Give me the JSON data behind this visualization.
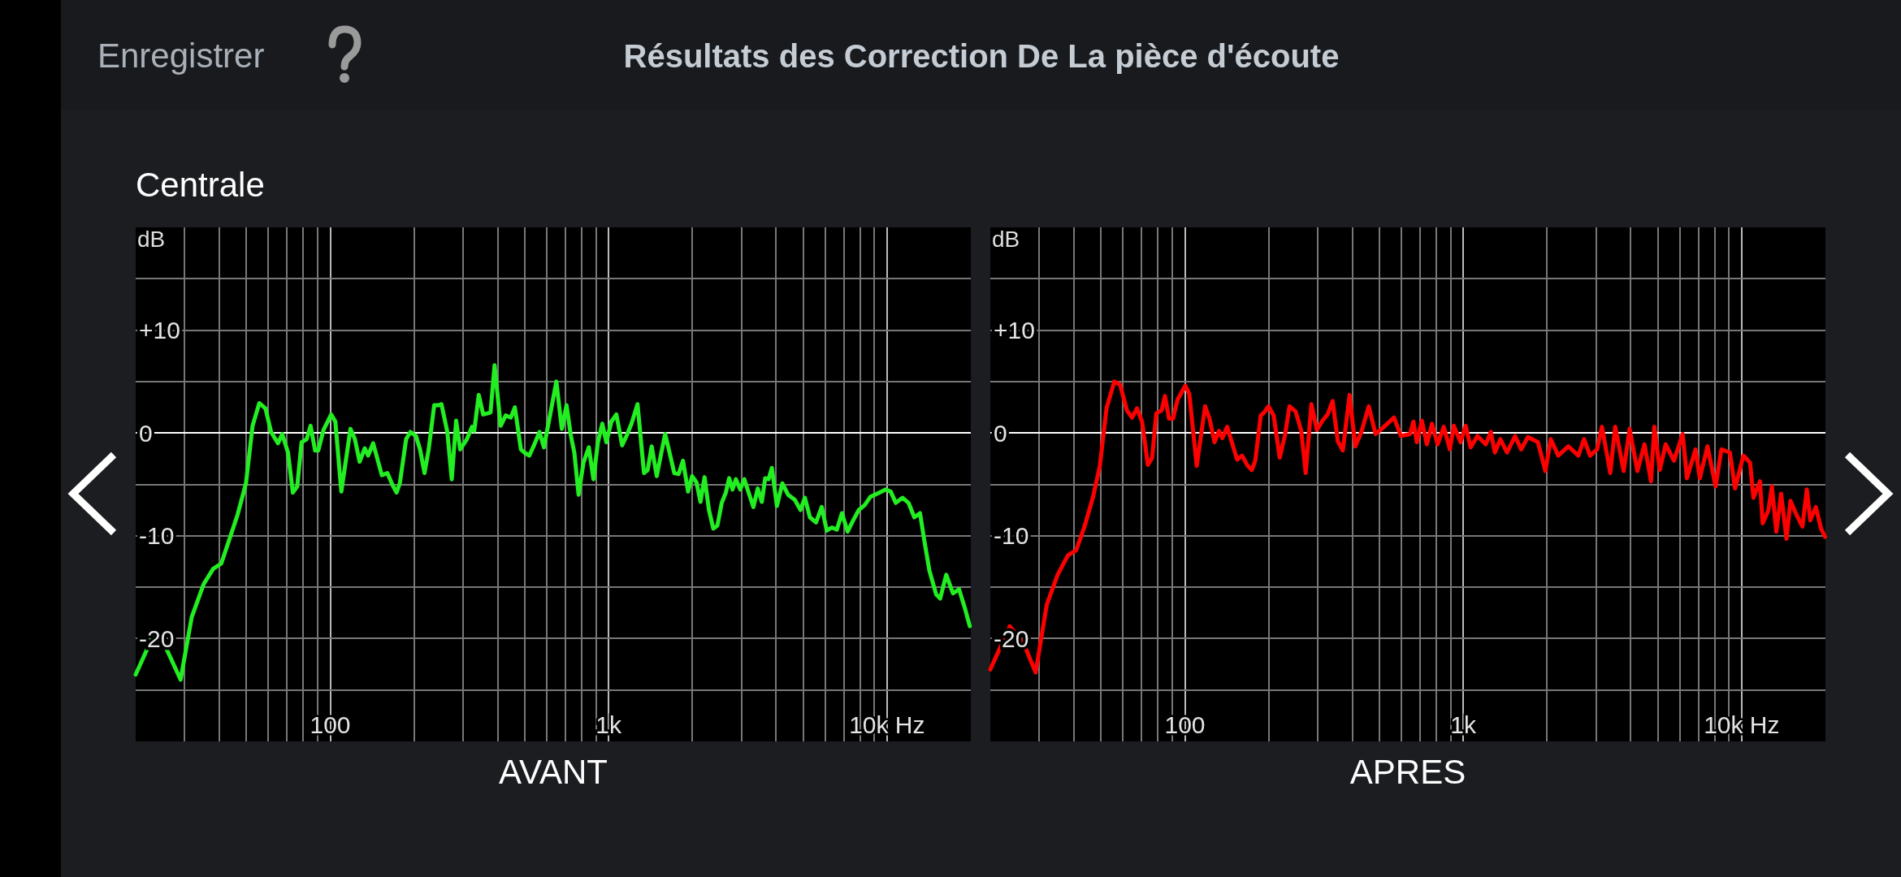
{
  "chart_data": [
    {
      "type": "line",
      "title": "Résultats des Correction De La pièce d'écoute",
      "subtitle": "Centrale",
      "annotations": [
        "Enregistrer"
      ],
      "xlabel": "AVANT",
      "ylabel": "dB",
      "log": "x",
      "grid": true,
      "xlim": [
        20,
        20000
      ],
      "ylim": [
        -30,
        20
      ],
      "xticks": [
        {
          "value": 30,
          "label": null
        },
        {
          "value": 40,
          "label": null
        },
        {
          "value": 50,
          "label": null
        },
        {
          "value": 60,
          "label": null
        },
        {
          "value": 70,
          "label": null
        },
        {
          "value": 80,
          "label": null
        },
        {
          "value": 90,
          "label": null
        },
        100,
        {
          "value": 200,
          "label": null
        },
        {
          "value": 300,
          "label": null
        },
        {
          "value": 400,
          "label": null
        },
        {
          "value": 500,
          "label": null
        },
        {
          "value": 600,
          "label": null
        },
        {
          "value": 700,
          "label": null
        },
        {
          "value": 800,
          "label": null
        },
        {
          "value": 900,
          "label": null
        },
        {
          "value": 1000,
          "label": "1k"
        },
        {
          "value": 2000,
          "label": null
        },
        {
          "value": 3000,
          "label": null
        },
        {
          "value": 4000,
          "label": null
        },
        {
          "value": 5000,
          "label": null
        },
        {
          "value": 6000,
          "label": null
        },
        {
          "value": 7000,
          "label": null
        },
        {
          "value": 8000,
          "label": null
        },
        {
          "value": 9000,
          "label": null
        },
        {
          "value": 10000,
          "label": "10k Hz"
        }
      ],
      "yticks": [
        {
          "value": 15,
          "label": null
        },
        {
          "value": 10,
          "label": "+10"
        },
        {
          "value": 5,
          "label": null
        },
        0,
        {
          "value": -5,
          "label": null
        },
        -10,
        {
          "value": -15,
          "label": null
        },
        -20,
        {
          "value": -25,
          "label": null
        }
      ],
      "series": [
        {
          "color": "#22ee22",
          "x": [
            20,
            23.4,
            25.8,
            29,
            31.8,
            35.1,
            38,
            40.6,
            46.4,
            49.8,
            52.6,
            55.6,
            58.5,
            61.3,
            64.9,
            67.2,
            70.5,
            73.4,
            76.1,
            78.9,
            82.3,
            85,
            88.2,
            90.6,
            94.6,
            100.8,
            104.3,
            109.6,
            118.2,
            122.6,
            127.5,
            133,
            136.8,
            142.6,
            153.2,
            160.4,
            167,
            173,
            177.8,
            187.3,
            194.1,
            203.3,
            210.2,
            218.1,
            225.7,
            236.3,
            244.1,
            250.9,
            263.4,
            273.2,
            283.3,
            292.9,
            309.7,
            322.9,
            329,
            341.6,
            354.2,
            366.8,
            376.5,
            389.3,
            409.4,
            426.9,
            445.2,
            460.4,
            484,
            497.7,
            519.1,
            541.3,
            564.4,
            585.3,
            613.7,
            648.9,
            679,
            706,
            732,
            753,
            780,
            812,
            849,
            882,
            915,
            949,
            981,
            1023,
            1066,
            1118,
            1159,
            1208,
            1270,
            1340,
            1381,
            1428,
            1489,
            1539,
            1596,
            1655,
            1721,
            1784,
            1850,
            1929,
            1995,
            2068,
            2138,
            2211,
            2293,
            2377,
            2459,
            2549,
            2636,
            2710,
            2786,
            2865,
            2970,
            3072,
            3202,
            3311,
            3433,
            3550,
            3651,
            3753,
            3859,
            4023,
            4207,
            4411,
            4665,
            4889,
            5069,
            5286,
            5558,
            5827,
            6076,
            6335,
            6603,
            6887,
            7220,
            7525,
            7913,
            8321,
            8723,
            9223,
            9889,
            10311,
            10750,
            11365,
            11954,
            12532,
            13138,
            13622,
            14203,
            15018,
            15524,
            16322,
            17258,
            18148,
            19025,
            19834
          ],
          "values": [
            -23.5,
            -19.4,
            -21,
            -24,
            -17.9,
            -14.7,
            -13.2,
            -12.7,
            -8,
            -4.9,
            0.7,
            2.9,
            2.4,
            0.1,
            -1,
            -0.1,
            -1.9,
            -5.8,
            -5.2,
            -0.9,
            -0.6,
            0.7,
            -1.7,
            -1.7,
            0.3,
            1.8,
            1.1,
            -5.7,
            0.4,
            -0.6,
            -2.8,
            -1.5,
            -2.2,
            -1,
            -4.1,
            -3.9,
            -5,
            -5.8,
            -4.9,
            -0.6,
            0.1,
            -0.3,
            -1.6,
            -3.9,
            -1.6,
            2.7,
            2.7,
            2.8,
            0.1,
            -4.5,
            1.2,
            -1.6,
            -0.6,
            0.6,
            0.2,
            3.7,
            1.8,
            1.9,
            2,
            6.6,
            0.7,
            1.7,
            1.5,
            2.5,
            -1.6,
            -1.9,
            -2.2,
            -1.1,
            0.1,
            -1.4,
            1.5,
            5,
            0.4,
            2.7,
            -0.3,
            -1.9,
            -6,
            -2.9,
            -1.4,
            -4.5,
            -0.9,
            0.9,
            -0.9,
            1.1,
            1.8,
            -1.2,
            -0.3,
            0.9,
            2.8,
            -3.9,
            -3.6,
            -1.3,
            -4.2,
            -2.2,
            -0.1,
            -1.9,
            -3.9,
            -4,
            -2.7,
            -5.7,
            -4.2,
            -4.8,
            -6.7,
            -4.3,
            -7.5,
            -9.3,
            -9,
            -6.8,
            -5.8,
            -4.4,
            -5.5,
            -4.5,
            -5.5,
            -4.5,
            -6,
            -7.2,
            -5.4,
            -6.7,
            -4.4,
            -4.5,
            -3.4,
            -7.1,
            -4.9,
            -6,
            -6.5,
            -7.5,
            -6.3,
            -8.2,
            -8.7,
            -7.2,
            -9.5,
            -9.2,
            -9.4,
            -7.8,
            -9.6,
            -8.6,
            -7.5,
            -7,
            -6.2,
            -5.9,
            -5.5,
            -5.7,
            -6.8,
            -6.3,
            -6.8,
            -8.2,
            -7.8,
            -10.5,
            -13.4,
            -15.7,
            -16.1,
            -13.8,
            -15.6,
            -15.2,
            -17,
            -18.8
          ]
        }
      ]
    },
    {
      "type": "line",
      "xlabel": "APRES",
      "ylabel": "dB",
      "log": "x",
      "grid": true,
      "xlim": [
        20,
        20000
      ],
      "ylim": [
        -30,
        20
      ],
      "xticks": [
        {
          "value": 30,
          "label": null
        },
        {
          "value": 40,
          "label": null
        },
        {
          "value": 50,
          "label": null
        },
        {
          "value": 60,
          "label": null
        },
        {
          "value": 70,
          "label": null
        },
        {
          "value": 80,
          "label": null
        },
        {
          "value": 90,
          "label": null
        },
        100,
        {
          "value": 200,
          "label": null
        },
        {
          "value": 300,
          "label": null
        },
        {
          "value": 400,
          "label": null
        },
        {
          "value": 500,
          "label": null
        },
        {
          "value": 600,
          "label": null
        },
        {
          "value": 700,
          "label": null
        },
        {
          "value": 800,
          "label": null
        },
        {
          "value": 900,
          "label": null
        },
        {
          "value": 1000,
          "label": "1k"
        },
        {
          "value": 2000,
          "label": null
        },
        {
          "value": 3000,
          "label": null
        },
        {
          "value": 4000,
          "label": null
        },
        {
          "value": 5000,
          "label": null
        },
        {
          "value": 6000,
          "label": null
        },
        {
          "value": 7000,
          "label": null
        },
        {
          "value": 8000,
          "label": null
        },
        {
          "value": 9000,
          "label": null
        },
        {
          "value": 10000,
          "label": "10k Hz"
        }
      ],
      "yticks": [
        {
          "value": 15,
          "label": null
        },
        {
          "value": 10,
          "label": "+10"
        },
        {
          "value": 5,
          "label": null
        },
        0,
        {
          "value": -5,
          "label": null
        },
        -10,
        {
          "value": -15,
          "label": null
        },
        -20,
        {
          "value": -25,
          "label": null
        }
      ],
      "series": [
        {
          "color": "#ff0000",
          "x": [
            20,
            23.5,
            26.4,
            29.1,
            31.9,
            34.9,
            38,
            40.7,
            43.6,
            46.8,
            49.5,
            52.3,
            55.8,
            58.5,
            61.9,
            64.6,
            67.3,
            70.2,
            73.6,
            76.3,
            78.9,
            82.5,
            84.8,
            87.7,
            90.7,
            94,
            100.3,
            103.7,
            110.3,
            118.2,
            122.6,
            127.8,
            132.6,
            136.3,
            141.8,
            154.1,
            160.6,
            167.2,
            173.9,
            179,
            187.3,
            192.8,
            199.6,
            208.4,
            219.1,
            228.5,
            237.6,
            249.8,
            261.9,
            271.6,
            284.8,
            297.8,
            312.2,
            325.6,
            339.5,
            354.2,
            369.3,
            390.5,
            409.4,
            430.5,
            457.6,
            484,
            519,
            564,
            597,
            644,
            662,
            681,
            710,
            740,
            772,
            809,
            851,
            895,
            925,
            978,
            1020,
            1063,
            1124,
            1205,
            1256,
            1299,
            1359,
            1436,
            1535,
            1614,
            1706,
            1855,
            1972,
            2062,
            2193,
            2385,
            2591,
            2715,
            2856,
            3024,
            3150,
            3374,
            3514,
            3769,
            3959,
            4222,
            4476,
            4726,
            4856,
            5082,
            5335,
            5714,
            6140,
            6362,
            6826,
            7077,
            7540,
            8062,
            8459,
            9076,
            9472,
            10146,
            10725,
            11023,
            11638,
            11897,
            12479,
            12843,
            13323,
            13860,
            14493,
            14977,
            15762,
            16531,
            17147,
            17638,
            18469,
            19285,
            19940
          ],
          "values": [
            -23,
            -18.8,
            -20.5,
            -23.3,
            -16.7,
            -13.8,
            -11.9,
            -11.4,
            -9.1,
            -6.2,
            -3.2,
            2.4,
            5,
            4.7,
            2.2,
            1.5,
            2.4,
            1.1,
            -3.1,
            -2.4,
            1.9,
            2.2,
            3.6,
            1.4,
            1.4,
            3.2,
            4.6,
            3.8,
            -3.2,
            2.6,
            1.4,
            -0.9,
            0.2,
            -0.5,
            0.6,
            -2.6,
            -2.2,
            -3.1,
            -3.6,
            -2.7,
            1.7,
            2,
            2.6,
            1.7,
            -2.4,
            -0.3,
            2.6,
            2.1,
            0.2,
            -3.9,
            2.8,
            0.3,
            1.2,
            1.8,
            3.1,
            -0.8,
            -1.7,
            3.7,
            -1.3,
            0.1,
            2.6,
            -0.1,
            0.6,
            1.5,
            -0.3,
            -0.1,
            1.1,
            -0.9,
            1.2,
            -1.1,
            0.9,
            -1.1,
            0.6,
            -1.6,
            0.7,
            -0.9,
            0.7,
            -1.4,
            -0.3,
            -1.1,
            0.1,
            -1.9,
            -0.6,
            -1.9,
            -0.3,
            -1.6,
            -0.4,
            -0.9,
            -3.7,
            -0.6,
            -2.2,
            -1.3,
            -2.2,
            -0.6,
            -2.2,
            -1.6,
            0.6,
            -3.9,
            0.6,
            -3.7,
            0.4,
            -3.7,
            -1.1,
            -4.7,
            0.6,
            -3.6,
            -1.1,
            -2.7,
            -0.1,
            -4.4,
            -1.6,
            -4.4,
            -1.3,
            -5.2,
            -1.6,
            -1.9,
            -5.4,
            -2.2,
            -2.9,
            -6.3,
            -4.7,
            -8.8,
            -7.5,
            -5.2,
            -9.6,
            -5.9,
            -10.3,
            -6.6,
            -8,
            -9.1,
            -5.5,
            -8.5,
            -7.2,
            -9.3,
            -10.1
          ]
        }
      ]
    }
  ]
}
